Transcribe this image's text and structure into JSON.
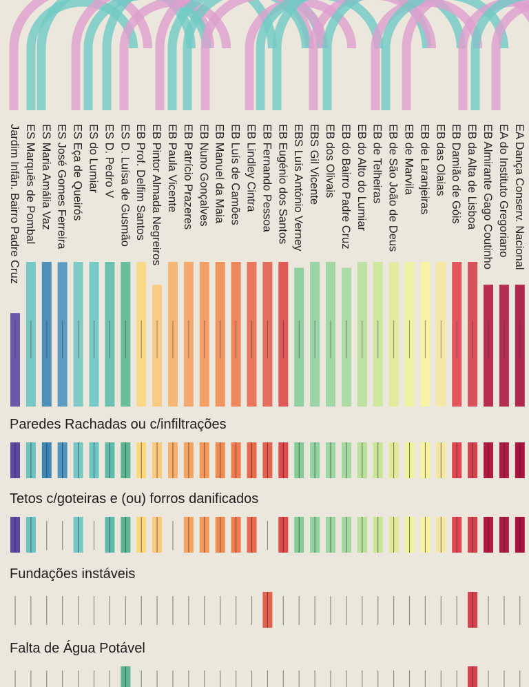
{
  "chart_data": {
    "type": "heatmap",
    "title": "",
    "schools": [
      {
        "name": "Jardim Infân. Bairro Padre Cruz",
        "color": "#5a4aa3"
      },
      {
        "name": "ES Marquês de Pombal",
        "color": "#6cc3c1"
      },
      {
        "name": "ES Maria Amália Vaz",
        "color": "#3f86b4"
      },
      {
        "name": "ES José Gomes Ferreira",
        "color": "#4e94bd"
      },
      {
        "name": "ES Eça de Queirós",
        "color": "#74c8c4"
      },
      {
        "name": "ES do Lumiar",
        "color": "#6cc7c3"
      },
      {
        "name": "ES D. Pedro V",
        "color": "#5fbcab"
      },
      {
        "name": "ES D. Luísa de Gusmão",
        "color": "#5db794"
      },
      {
        "name": "EB Prof. Delfim Santos",
        "color": "#fbd77e"
      },
      {
        "name": "EB Pintor Almada Negreiros",
        "color": "#fbc97c"
      },
      {
        "name": "EB Paula Vicente",
        "color": "#f6b06a"
      },
      {
        "name": "EB Patrício Prazeres",
        "color": "#f4a260"
      },
      {
        "name": "EB Nuno Gonçalves",
        "color": "#f39858"
      },
      {
        "name": "EB Manuel da Maia",
        "color": "#f08c52"
      },
      {
        "name": "EB Luís de Camões",
        "color": "#ee7d4e"
      },
      {
        "name": "EB Lindley Cintra",
        "color": "#e86a4c"
      },
      {
        "name": "EB Fernando Pessoa",
        "color": "#e3614f"
      },
      {
        "name": "EB Eugénio dos Santos",
        "color": "#dc4a49"
      },
      {
        "name": "EBS Luís António Verney",
        "color": "#86cc98"
      },
      {
        "name": "EBS Gil Vicente",
        "color": "#92d2a0"
      },
      {
        "name": "EB dos Olivais",
        "color": "#9bd5a0"
      },
      {
        "name": "EB do Bairro Padre Cruz",
        "color": "#a5d99e"
      },
      {
        "name": "EB do Alto do Lumiar",
        "color": "#b9df9b"
      },
      {
        "name": "EB de Telheiras",
        "color": "#cbe596"
      },
      {
        "name": "EB de São João de Deus",
        "color": "#dfeb97"
      },
      {
        "name": "EB de Marvila",
        "color": "#eef39c"
      },
      {
        "name": "EB de Laranjeiras",
        "color": "#f8f39d"
      },
      {
        "name": "EB das Olaias",
        "color": "#f6e7a0"
      },
      {
        "name": "EB Damião de Góis",
        "color": "#e0474f"
      },
      {
        "name": "EB da Alta de Lisboa",
        "color": "#d6404d"
      },
      {
        "name": "EB Almirante Gago Coutinho",
        "color": "#b2193e"
      },
      {
        "name": "EA do Instituto Gregoriano",
        "color": "#ae1a42"
      },
      {
        "name": "EA Dança Conserv. Nacional",
        "color": "#a8143e"
      }
    ],
    "issues": [
      {
        "name": "Paredes Rachadas ou c/infiltrações",
        "values": [
          1,
          1,
          1,
          1,
          1,
          1,
          1,
          1,
          1,
          1,
          1,
          1,
          1,
          1,
          1,
          1,
          1,
          1,
          1,
          1,
          1,
          1,
          1,
          1,
          1,
          1,
          1,
          1,
          1,
          1,
          1,
          1,
          1
        ]
      },
      {
        "name": "Tetos c/goteiras e (ou) forros danificados",
        "values": [
          1,
          1,
          0,
          0,
          1,
          0,
          1,
          1,
          1,
          1,
          0,
          1,
          1,
          1,
          1,
          1,
          0,
          1,
          1,
          1,
          1,
          1,
          1,
          1,
          1,
          1,
          1,
          1,
          1,
          1,
          1,
          1,
          1
        ]
      },
      {
        "name": "Fundações instáveis",
        "values": [
          0,
          0,
          0,
          0,
          0,
          0,
          0,
          0,
          0,
          0,
          0,
          0,
          0,
          0,
          0,
          0,
          1,
          0,
          0,
          0,
          0,
          0,
          0,
          0,
          0,
          0,
          0,
          0,
          0,
          1,
          0,
          0,
          0
        ]
      },
      {
        "name": "Falta de Água Potável",
        "values": [
          0,
          0,
          0,
          0,
          0,
          0,
          0,
          1,
          0,
          0,
          0,
          0,
          0,
          0,
          0,
          0,
          0,
          0,
          0,
          0,
          0,
          0,
          0,
          0,
          0,
          0,
          0,
          0,
          0,
          1,
          0,
          0,
          0
        ]
      }
    ]
  },
  "colors": {
    "background": "#ebe7dd",
    "arc_pink": "#de9fce",
    "arc_teal": "#6fcac4",
    "empty_line": "#8a8a8a",
    "text": "#1e1e1e"
  }
}
